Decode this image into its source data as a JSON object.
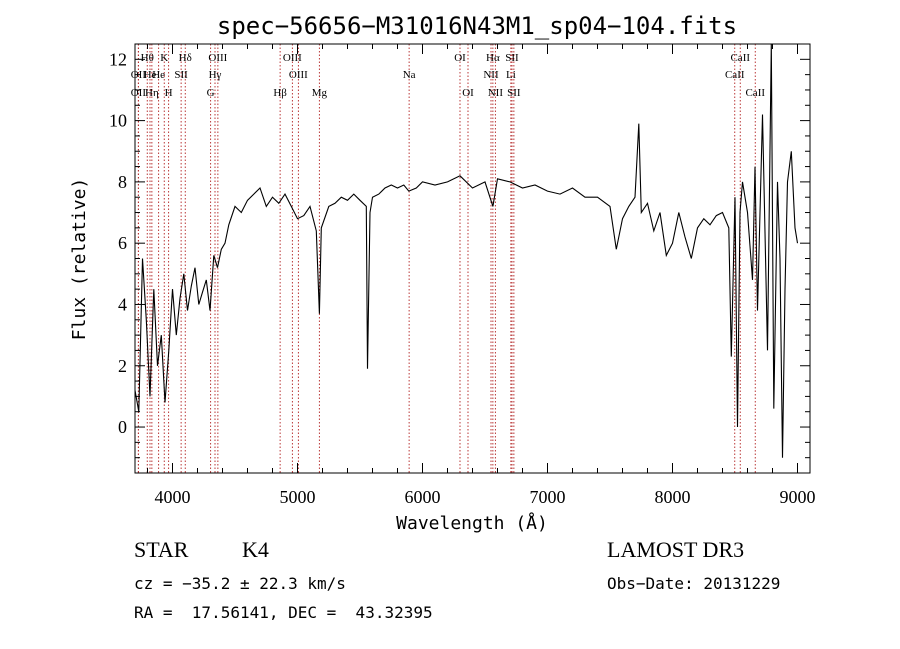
{
  "chart_data": {
    "type": "line",
    "title": "spec−56656−M31016N43M1_sp04−104.fits",
    "xlabel": "Wavelength (Å)",
    "ylabel": "Flux (relative)",
    "xlim": [
      3700,
      9100
    ],
    "ylim": [
      -1.5,
      12.5
    ],
    "xticks": [
      4000,
      5000,
      6000,
      7000,
      8000,
      9000
    ],
    "yticks": [
      0,
      2,
      4,
      6,
      8,
      10,
      12
    ],
    "grid": false,
    "series": [
      {
        "name": "flux",
        "x": [
          3700,
          3730,
          3760,
          3790,
          3820,
          3850,
          3880,
          3910,
          3940,
          3970,
          4000,
          4030,
          4060,
          4090,
          4120,
          4150,
          4180,
          4210,
          4240,
          4270,
          4300,
          4330,
          4360,
          4390,
          4420,
          4450,
          4500,
          4550,
          4600,
          4650,
          4700,
          4750,
          4800,
          4850,
          4900,
          4950,
          5000,
          5050,
          5100,
          5150,
          5175,
          5190,
          5250,
          5300,
          5350,
          5400,
          5450,
          5500,
          5550,
          5560,
          5580,
          5600,
          5650,
          5700,
          5750,
          5800,
          5850,
          5890,
          5950,
          6000,
          6100,
          6200,
          6300,
          6400,
          6500,
          6563,
          6600,
          6700,
          6800,
          6900,
          7000,
          7100,
          7200,
          7300,
          7400,
          7500,
          7550,
          7600,
          7650,
          7700,
          7730,
          7750,
          7800,
          7850,
          7900,
          7950,
          8000,
          8050,
          8100,
          8150,
          8200,
          8250,
          8300,
          8350,
          8400,
          8450,
          8470,
          8500,
          8520,
          8540,
          8560,
          8600,
          8640,
          8660,
          8680,
          8720,
          8760,
          8790,
          8810,
          8840,
          8860,
          8880,
          8900,
          8920,
          8950,
          8980,
          9000
        ],
        "y": [
          1.2,
          0.5,
          5.5,
          3.5,
          1.0,
          4.5,
          2.0,
          3.0,
          0.8,
          2.5,
          4.5,
          3.0,
          4.2,
          5.0,
          3.8,
          4.6,
          5.2,
          4.0,
          4.4,
          4.8,
          3.8,
          5.6,
          5.2,
          5.8,
          6.0,
          6.6,
          7.2,
          7.0,
          7.4,
          7.6,
          7.8,
          7.2,
          7.5,
          7.3,
          7.6,
          7.2,
          6.8,
          6.9,
          7.2,
          6.4,
          3.7,
          6.5,
          7.2,
          7.3,
          7.5,
          7.4,
          7.6,
          7.4,
          7.2,
          1.9,
          7.0,
          7.5,
          7.6,
          7.8,
          7.9,
          7.8,
          7.9,
          7.7,
          7.8,
          8.0,
          7.9,
          8.0,
          8.2,
          7.8,
          8.0,
          7.2,
          8.1,
          8.0,
          7.8,
          7.9,
          7.7,
          7.6,
          7.8,
          7.5,
          7.5,
          7.2,
          5.8,
          6.8,
          7.2,
          7.5,
          9.9,
          7.0,
          7.3,
          6.4,
          7.0,
          5.6,
          6.0,
          7.0,
          6.2,
          5.5,
          6.5,
          6.8,
          6.6,
          6.9,
          7.0,
          6.5,
          2.3,
          7.5,
          0.0,
          7.0,
          8.0,
          7.0,
          4.8,
          8.5,
          3.8,
          10.2,
          2.5,
          12.5,
          0.6,
          8.0,
          5.5,
          -1.0,
          4.5,
          8.0,
          9.0,
          6.5,
          6.0
        ]
      }
    ],
    "emission_lines": [
      {
        "label": "OII",
        "x": 3727,
        "row": 2
      },
      {
        "label": "Hθ",
        "x": 3798,
        "row": 0
      },
      {
        "label": "OII",
        "x": 3727,
        "row": 1
      },
      {
        "label": "He",
        "x": 3820,
        "row": 1
      },
      {
        "label": "Hη",
        "x": 3835,
        "row": 2
      },
      {
        "label": "K",
        "x": 3934,
        "row": 0
      },
      {
        "label": "H",
        "x": 3969,
        "row": 2
      },
      {
        "label": "He",
        "x": 3889,
        "row": 1
      },
      {
        "label": "SII",
        "x": 4069,
        "row": 1
      },
      {
        "label": "Hδ",
        "x": 4102,
        "row": 0
      },
      {
        "label": "OIII",
        "x": 4363,
        "row": 0
      },
      {
        "label": "Hγ",
        "x": 4340,
        "row": 1
      },
      {
        "label": "G",
        "x": 4305,
        "row": 2
      },
      {
        "label": "OIII",
        "x": 4959,
        "row": 0
      },
      {
        "label": "OIII",
        "x": 5007,
        "row": 1
      },
      {
        "label": "Hβ",
        "x": 4861,
        "row": 2
      },
      {
        "label": "Mg",
        "x": 5175,
        "row": 2
      },
      {
        "label": "Na",
        "x": 5893,
        "row": 1
      },
      {
        "label": "OI",
        "x": 6300,
        "row": 0
      },
      {
        "label": "OI",
        "x": 6364,
        "row": 2
      },
      {
        "label": "Hα",
        "x": 6563,
        "row": 0
      },
      {
        "label": "SII",
        "x": 6716,
        "row": 0
      },
      {
        "label": "NII",
        "x": 6548,
        "row": 1
      },
      {
        "label": "Li",
        "x": 6707,
        "row": 1
      },
      {
        "label": "NII",
        "x": 6583,
        "row": 2
      },
      {
        "label": "SII",
        "x": 6731,
        "row": 2
      },
      {
        "label": "CaII",
        "x": 8498,
        "row": 1
      },
      {
        "label": "CaII",
        "x": 8542,
        "row": 0
      },
      {
        "label": "CaII",
        "x": 8662,
        "row": 2
      }
    ]
  },
  "info": {
    "class_label": "STAR",
    "subclass": "K4",
    "survey": "LAMOST DR3",
    "cz_line": "cz = −35.2 ± 22.3 km/s",
    "obs_date_line": "Obs−Date: 20131229",
    "radec_line": "RA =  17.56141, DEC =  43.32395"
  }
}
